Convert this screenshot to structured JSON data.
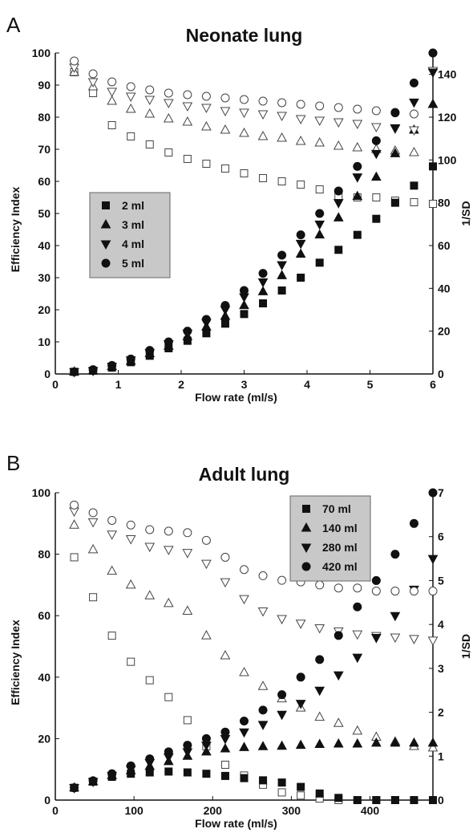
{
  "panels": [
    {
      "letter": "A",
      "chart_data": {
        "type": "scatter",
        "title": "Neonate lung",
        "xlabel": "Flow rate (ml/s)",
        "ylabel": "Efficiency Index",
        "y2label": "1/SD",
        "xlim": [
          0,
          6
        ],
        "ylim": [
          0,
          100
        ],
        "y2lim": [
          0,
          150
        ],
        "xticks": [
          "0",
          "1",
          "2",
          "3",
          "4",
          "5",
          "6"
        ],
        "yticks": [
          "0",
          "10",
          "20",
          "30",
          "40",
          "50",
          "60",
          "70",
          "80",
          "90",
          "100"
        ],
        "y2ticks": [
          "0",
          "20",
          "40",
          "60",
          "80",
          "100",
          "120",
          "140"
        ],
        "legend_position": "left-middle",
        "x": [
          0.3,
          0.6,
          0.9,
          1.2,
          1.5,
          1.8,
          2.1,
          2.4,
          2.7,
          3.0,
          3.3,
          3.6,
          3.9,
          4.2,
          4.5,
          4.8,
          5.1,
          5.4,
          5.7,
          6.0
        ],
        "series": [
          {
            "name": "2 ml",
            "marker": "square",
            "efficiency_index": [
              94,
              87.5,
              77.5,
              74,
              71.5,
              69,
              67,
              65.5,
              64,
              62.5,
              61,
              60,
              59,
              57.5,
              55.5,
              55,
              55,
              54,
              53.5,
              53
            ],
            "inv_sd": [
              1,
              1.5,
              3,
              5.5,
              8.5,
              12,
              15.5,
              19,
              23.5,
              28,
              33,
              39,
              45,
              52,
              58,
              65,
              72.5,
              80,
              88,
              97
            ]
          },
          {
            "name": "3 ml",
            "marker": "triangle-up",
            "efficiency_index": [
              94,
              89.5,
              85,
              82.5,
              81,
              79.5,
              78.5,
              77,
              76,
              75,
              74,
              73.5,
              72.5,
              72,
              71,
              70.5,
              70,
              69.5,
              69,
              84
            ],
            "inv_sd": [
              1,
              1.5,
              3.5,
              6,
              9.5,
              13,
              17.5,
              22,
              27,
              32,
              38.5,
              46,
              56,
              65,
              73,
              83,
              92,
              103,
              114,
              126
            ]
          },
          {
            "name": "4 ml",
            "marker": "triangle-down",
            "efficiency_index": [
              95.5,
              91,
              88,
              86.5,
              85.5,
              84.5,
              83.5,
              83,
              82,
              81.5,
              81,
              80.5,
              79.5,
              79,
              78.5,
              78,
              77,
              76.5,
              76,
              94.5
            ],
            "inv_sd": [
              1,
              1.5,
              3.5,
              6.5,
              10,
              14,
              19,
              24,
              30,
              36,
              43,
              51,
              61,
              70,
              80,
              92,
              103,
              115,
              127,
              141
            ]
          },
          {
            "name": "5 ml",
            "marker": "circle",
            "efficiency_index": [
              97.5,
              93.5,
              91,
              89.5,
              88.5,
              87.5,
              87,
              86.5,
              86,
              85.5,
              85,
              84.5,
              84,
              83.5,
              83,
              82.5,
              82,
              81.5,
              81,
              100
            ],
            "inv_sd": [
              1,
              2,
              4,
              7,
              11,
              15,
              20,
              25.5,
              32,
              39,
              47,
              55.5,
              65,
              75,
              85.5,
              97,
              109,
              122,
              136,
              150
            ]
          }
        ]
      }
    },
    {
      "letter": "B",
      "chart_data": {
        "type": "scatter",
        "title": "Adult lung",
        "xlabel": "Flow rate (ml/s)",
        "ylabel": "Efficiency Index",
        "y2label": "1/SD",
        "xlim": [
          0,
          480
        ],
        "ylim": [
          0,
          100
        ],
        "y2lim": [
          0,
          7
        ],
        "xticks": [
          "0",
          "100",
          "200",
          "300",
          "400"
        ],
        "yticks": [
          "0",
          "20",
          "40",
          "60",
          "80",
          "100"
        ],
        "y2ticks": [
          "0",
          "1",
          "2",
          "3",
          "4",
          "5",
          "6",
          "7"
        ],
        "legend_position": "top-right",
        "x": [
          24,
          48,
          72,
          96,
          120,
          144,
          168,
          192,
          216,
          240,
          264,
          288,
          312,
          336,
          360,
          384,
          408,
          432,
          456,
          480
        ],
        "series": [
          {
            "name": "70 ml",
            "marker": "square",
            "efficiency_index": [
              79,
              66,
              53.5,
              45,
              39,
              33.5,
              26,
              17.5,
              11.5,
              8,
              5,
              2.5,
              1.5,
              0.5,
              0,
              0,
              0,
              0,
              0,
              0
            ],
            "inv_sd": [
              0.28,
              0.42,
              0.53,
              0.6,
              0.63,
              0.65,
              0.63,
              0.6,
              0.55,
              0.5,
              0.45,
              0.4,
              0.3,
              0.15,
              0.05,
              0,
              0,
              0,
              0,
              0
            ]
          },
          {
            "name": "140 ml",
            "marker": "triangle-up",
            "efficiency_index": [
              89.5,
              81.5,
              74.5,
              70,
              66.5,
              64,
              61.5,
              53.5,
              47,
              41.5,
              37,
              33,
              30,
              27,
              25,
              22.5,
              20.5,
              19,
              17.5,
              17
            ],
            "inv_sd": [
              0.28,
              0.42,
              0.56,
              0.67,
              0.77,
              0.88,
              1.0,
              1.1,
              1.17,
              1.2,
              1.22,
              1.23,
              1.25,
              1.27,
              1.28,
              1.28,
              1.3,
              1.3,
              1.3,
              1.3
            ]
          },
          {
            "name": "280 ml",
            "marker": "triangle-down",
            "efficiency_index": [
              94,
              90.5,
              86.5,
              85,
              82.5,
              81.5,
              80.5,
              77,
              71,
              65.5,
              61.5,
              59,
              57.5,
              56,
              55,
              54,
              53.5,
              53,
              52.5,
              52
            ],
            "inv_sd": [
              0.28,
              0.42,
              0.56,
              0.7,
              0.85,
              0.98,
              1.1,
              1.25,
              1.4,
              1.55,
              1.72,
              1.95,
              2.2,
              2.5,
              2.85,
              3.25,
              3.7,
              4.2,
              4.8,
              5.5
            ]
          },
          {
            "name": "420 ml",
            "marker": "circle",
            "efficiency_index": [
              96,
              93.5,
              91,
              89.5,
              88,
              87.5,
              87,
              84.5,
              79,
              75,
              73,
              71.5,
              71,
              70,
              69,
              69,
              68,
              68,
              68,
              68
            ],
            "inv_sd": [
              0.28,
              0.44,
              0.6,
              0.78,
              0.94,
              1.1,
              1.25,
              1.4,
              1.55,
              1.8,
              2.05,
              2.4,
              2.8,
              3.2,
              3.75,
              4.4,
              5,
              5.6,
              6.3,
              7
            ]
          }
        ]
      }
    }
  ]
}
